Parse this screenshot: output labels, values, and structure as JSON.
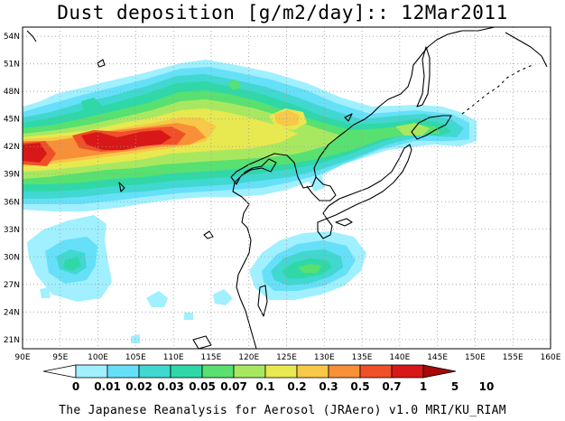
{
  "title": "Dust deposition [g/m2/day]:: 12Mar2011",
  "footer": "The Japanese Reanalysis for Aerosol (JRAero) v1.0 MRI/KU_RIAM",
  "map": {
    "lon_min": 90,
    "lon_max": 160,
    "lat_min": 20,
    "lat_max": 55,
    "lon_ticks": [
      "90E",
      "95E",
      "100E",
      "105E",
      "110E",
      "115E",
      "120E",
      "125E",
      "130E",
      "135E",
      "140E",
      "145E",
      "150E",
      "155E",
      "160E"
    ],
    "lat_ticks": [
      "21N",
      "24N",
      "27N",
      "30N",
      "33N",
      "36N",
      "39N",
      "42N",
      "45N",
      "48N",
      "51N",
      "54N"
    ]
  },
  "colorbar": {
    "labels": [
      "0",
      "0.01",
      "0.02",
      "0.03",
      "0.05",
      "0.07",
      "0.1",
      "0.2",
      "0.3",
      "0.5",
      "0.7",
      "1",
      "5",
      "10"
    ],
    "colors": [
      "#ffffff",
      "#a0f0ff",
      "#66e0f8",
      "#40d8d0",
      "#30d8a8",
      "#58e070",
      "#a8e860",
      "#e8e850",
      "#f8c848",
      "#f89038",
      "#f05028",
      "#d81818",
      "#a80808"
    ]
  }
}
